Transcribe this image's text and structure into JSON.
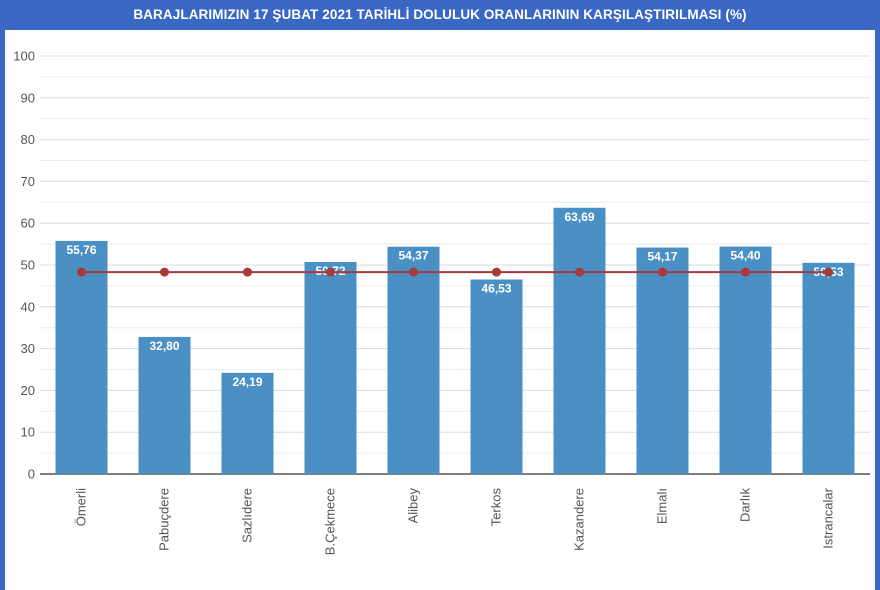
{
  "chart_data": {
    "type": "bar",
    "title": "BARAJLARIMIZIN 17 ŞUBAT 2021 TARİHLİ DOLULUK ORANLARININ KARŞILAŞTIRILMASI (%)",
    "categories": [
      "Ömerli",
      "Pabuçdere",
      "Sazlıdere",
      "B.Çekmece",
      "Alibey",
      "Terkos",
      "Kazandere",
      "Elmalı",
      "Darlık",
      "Istrancalar"
    ],
    "series": [
      {
        "type": "bar",
        "values": [
          55.76,
          32.8,
          24.19,
          50.72,
          54.37,
          46.53,
          63.69,
          54.17,
          54.4,
          50.53
        ],
        "value_labels": [
          "55,76",
          "32,80",
          "24,19",
          "50,72",
          "54,37",
          "46,53",
          "63,69",
          "54,17",
          "54,40",
          "50,53"
        ],
        "color": "#4a90c4"
      },
      {
        "type": "line",
        "values": [
          48.3,
          48.3,
          48.3,
          48.3,
          48.3,
          48.3,
          48.3,
          48.3,
          48.3,
          48.3
        ],
        "color": "#a83a3a"
      }
    ],
    "xlabel": "",
    "ylabel": "",
    "ylim": [
      0,
      100
    ],
    "yticks": [
      "0",
      "10",
      "20",
      "30",
      "40",
      "50",
      "60",
      "70",
      "80",
      "90",
      "100"
    ],
    "grid": true,
    "legend": "none"
  }
}
